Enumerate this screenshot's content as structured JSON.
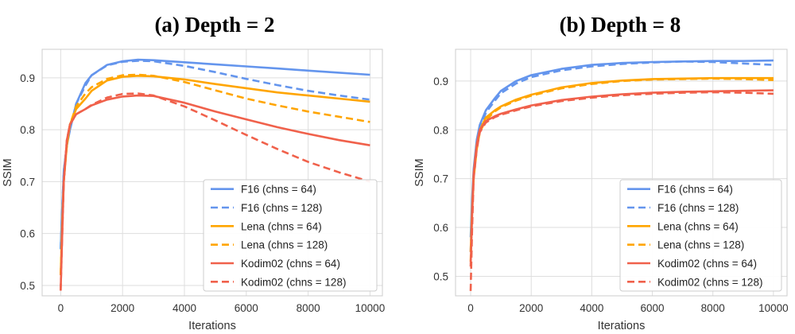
{
  "figure": {
    "palette": {
      "F16": "#6495ED",
      "Lena": "#FFA500",
      "Kodim02": "#F0614B"
    }
  },
  "chart_data": [
    {
      "type": "line",
      "title": "(a) Depth = 2",
      "xlabel": "Iterations",
      "ylabel": "SSIM",
      "xlim": [
        -600,
        10400
      ],
      "ylim": [
        0.48,
        0.955
      ],
      "xticks": [
        0,
        2000,
        4000,
        6000,
        8000,
        10000
      ],
      "yticks": [
        0.5,
        0.6,
        0.7,
        0.8,
        0.9
      ],
      "grid": true,
      "legend": "lower-right",
      "series": [
        {
          "name": "F16 (chns = 64)",
          "color": "#6495ED",
          "dash": "solid",
          "x": [
            0,
            50,
            100,
            200,
            300,
            500,
            800,
            1000,
            1500,
            2000,
            2500,
            3000,
            4000,
            5000,
            6000,
            7000,
            8000,
            9000,
            10000
          ],
          "y": [
            0.57,
            0.65,
            0.72,
            0.77,
            0.8,
            0.85,
            0.89,
            0.905,
            0.925,
            0.932,
            0.935,
            0.934,
            0.93,
            0.926,
            0.922,
            0.918,
            0.914,
            0.91,
            0.906
          ]
        },
        {
          "name": "F16 (chns = 128)",
          "color": "#6495ED",
          "dash": "dashed",
          "x": [
            0,
            50,
            100,
            200,
            300,
            500,
            800,
            1000,
            1500,
            2000,
            2500,
            3000,
            4000,
            5000,
            6000,
            7000,
            8000,
            9000,
            10000
          ],
          "y": [
            0.57,
            0.65,
            0.72,
            0.77,
            0.8,
            0.85,
            0.885,
            0.905,
            0.924,
            0.931,
            0.933,
            0.932,
            0.923,
            0.911,
            0.898,
            0.886,
            0.875,
            0.866,
            0.858
          ]
        },
        {
          "name": "Lena (chns = 64)",
          "color": "#FFA500",
          "dash": "solid",
          "x": [
            0,
            50,
            100,
            200,
            300,
            500,
            800,
            1000,
            1500,
            2000,
            2500,
            3000,
            4000,
            5000,
            6000,
            7000,
            8000,
            9000,
            10000
          ],
          "y": [
            0.52,
            0.62,
            0.7,
            0.77,
            0.81,
            0.84,
            0.86,
            0.875,
            0.895,
            0.902,
            0.904,
            0.903,
            0.897,
            0.888,
            0.88,
            0.872,
            0.866,
            0.86,
            0.854
          ]
        },
        {
          "name": "Lena (chns = 128)",
          "color": "#FFA500",
          "dash": "dashed",
          "x": [
            0,
            50,
            100,
            200,
            300,
            500,
            800,
            1000,
            1500,
            2000,
            2500,
            3000,
            4000,
            5000,
            6000,
            7000,
            8000,
            9000,
            10000
          ],
          "y": [
            0.52,
            0.62,
            0.7,
            0.77,
            0.81,
            0.845,
            0.87,
            0.882,
            0.898,
            0.905,
            0.906,
            0.904,
            0.892,
            0.876,
            0.86,
            0.847,
            0.835,
            0.825,
            0.815
          ]
        },
        {
          "name": "Kodim02 (chns = 64)",
          "color": "#F0614B",
          "dash": "solid",
          "x": [
            0,
            50,
            100,
            200,
            300,
            500,
            800,
            1000,
            1500,
            2000,
            2500,
            3000,
            4000,
            5000,
            6000,
            7000,
            8000,
            9000,
            10000
          ],
          "y": [
            0.49,
            0.6,
            0.7,
            0.78,
            0.81,
            0.83,
            0.84,
            0.847,
            0.858,
            0.864,
            0.866,
            0.865,
            0.852,
            0.835,
            0.82,
            0.805,
            0.792,
            0.78,
            0.77
          ]
        },
        {
          "name": "Kodim02 (chns = 128)",
          "color": "#F0614B",
          "dash": "dashed",
          "x": [
            0,
            50,
            100,
            200,
            300,
            500,
            800,
            1000,
            1500,
            2000,
            2500,
            3000,
            4000,
            5000,
            6000,
            7000,
            8000,
            9000,
            10000
          ],
          "y": [
            0.49,
            0.6,
            0.7,
            0.78,
            0.81,
            0.83,
            0.84,
            0.848,
            0.862,
            0.869,
            0.87,
            0.866,
            0.845,
            0.818,
            0.79,
            0.763,
            0.738,
            0.718,
            0.7
          ]
        }
      ]
    },
    {
      "type": "line",
      "title": "(b) Depth = 8",
      "xlabel": "Iterations",
      "ylabel": "SSIM",
      "xlim": [
        -500,
        10450
      ],
      "ylim": [
        0.46,
        0.965
      ],
      "xticks": [
        0,
        2000,
        4000,
        6000,
        8000,
        10000
      ],
      "yticks": [
        0.5,
        0.6,
        0.7,
        0.8,
        0.9
      ],
      "grid": true,
      "legend": "lower-right",
      "series": [
        {
          "name": "F16 (chns = 64)",
          "color": "#6495ED",
          "dash": "solid",
          "x": [
            0,
            50,
            100,
            200,
            300,
            500,
            800,
            1000,
            1500,
            2000,
            3000,
            4000,
            5000,
            6000,
            7000,
            8000,
            9000,
            10000
          ],
          "y": [
            0.58,
            0.66,
            0.72,
            0.78,
            0.81,
            0.84,
            0.865,
            0.88,
            0.9,
            0.912,
            0.925,
            0.933,
            0.937,
            0.939,
            0.94,
            0.941,
            0.941,
            0.942
          ]
        },
        {
          "name": "F16 (chns = 128)",
          "color": "#6495ED",
          "dash": "dashed",
          "x": [
            0,
            50,
            100,
            200,
            300,
            500,
            800,
            1000,
            1500,
            2000,
            3000,
            4000,
            5000,
            6000,
            7000,
            8000,
            9000,
            10000
          ],
          "y": [
            0.55,
            0.64,
            0.71,
            0.77,
            0.8,
            0.835,
            0.86,
            0.875,
            0.895,
            0.908,
            0.922,
            0.93,
            0.935,
            0.938,
            0.94,
            0.939,
            0.936,
            0.933
          ]
        },
        {
          "name": "Lena (chns = 64)",
          "color": "#FFA500",
          "dash": "solid",
          "x": [
            0,
            50,
            100,
            200,
            300,
            500,
            800,
            1000,
            1500,
            2000,
            3000,
            4000,
            5000,
            6000,
            7000,
            8000,
            9000,
            10000
          ],
          "y": [
            0.55,
            0.64,
            0.71,
            0.77,
            0.8,
            0.825,
            0.84,
            0.848,
            0.862,
            0.872,
            0.887,
            0.896,
            0.901,
            0.904,
            0.905,
            0.906,
            0.906,
            0.906
          ]
        },
        {
          "name": "Lena (chns = 128)",
          "color": "#FFA500",
          "dash": "dashed",
          "x": [
            0,
            50,
            100,
            200,
            300,
            500,
            800,
            1000,
            1500,
            2000,
            3000,
            4000,
            5000,
            6000,
            7000,
            8000,
            9000,
            10000
          ],
          "y": [
            0.53,
            0.63,
            0.7,
            0.76,
            0.795,
            0.82,
            0.838,
            0.846,
            0.86,
            0.87,
            0.885,
            0.894,
            0.9,
            0.903,
            0.904,
            0.905,
            0.904,
            0.902
          ]
        },
        {
          "name": "Kodim02 (chns = 64)",
          "color": "#F0614B",
          "dash": "solid",
          "x": [
            0,
            50,
            100,
            200,
            300,
            500,
            800,
            1000,
            1500,
            2000,
            3000,
            4000,
            5000,
            6000,
            7000,
            8000,
            9000,
            10000
          ],
          "y": [
            0.52,
            0.63,
            0.71,
            0.77,
            0.8,
            0.818,
            0.828,
            0.833,
            0.842,
            0.85,
            0.861,
            0.868,
            0.873,
            0.876,
            0.878,
            0.879,
            0.88,
            0.881
          ]
        },
        {
          "name": "Kodim02 (chns = 128)",
          "color": "#F0614B",
          "dash": "dashed",
          "x": [
            0,
            50,
            100,
            200,
            300,
            500,
            800,
            1000,
            1500,
            2000,
            3000,
            4000,
            5000,
            6000,
            7000,
            8000,
            9000,
            10000
          ],
          "y": [
            0.47,
            0.6,
            0.7,
            0.76,
            0.795,
            0.815,
            0.826,
            0.831,
            0.84,
            0.848,
            0.859,
            0.866,
            0.871,
            0.874,
            0.876,
            0.877,
            0.876,
            0.874
          ]
        }
      ]
    }
  ]
}
